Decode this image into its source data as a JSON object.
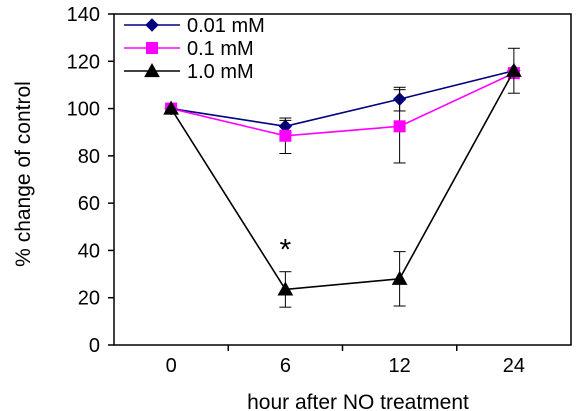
{
  "chart_data": {
    "type": "line",
    "title": "",
    "xlabel": "hour after NO treatment",
    "ylabel": "% change of control",
    "categories": [
      "0",
      "6",
      "12",
      "24"
    ],
    "ylim": [
      0,
      140
    ],
    "yticks": [
      0,
      20,
      40,
      60,
      80,
      100,
      120,
      140
    ],
    "grid": false,
    "legend_position": "top-left",
    "series": [
      {
        "name": "0.01 mM",
        "color": "#000080",
        "marker": "diamond",
        "values": [
          100,
          92.5,
          104,
          116
        ],
        "error": [
          null,
          2.5,
          5,
          null
        ]
      },
      {
        "name": "0.1 mM",
        "color": "#ff00ff",
        "marker": "square",
        "values": [
          100,
          88.5,
          92.5,
          115
        ],
        "error": [
          null,
          7.5,
          15.5,
          null
        ]
      },
      {
        "name": "1.0 mM",
        "color": "#000000",
        "marker": "triangle",
        "values": [
          100,
          23.5,
          28,
          116
        ],
        "error": [
          null,
          7.5,
          11.5,
          9.5
        ]
      }
    ],
    "annotations": [
      {
        "text": "*",
        "category": "6",
        "value": 42
      }
    ]
  }
}
